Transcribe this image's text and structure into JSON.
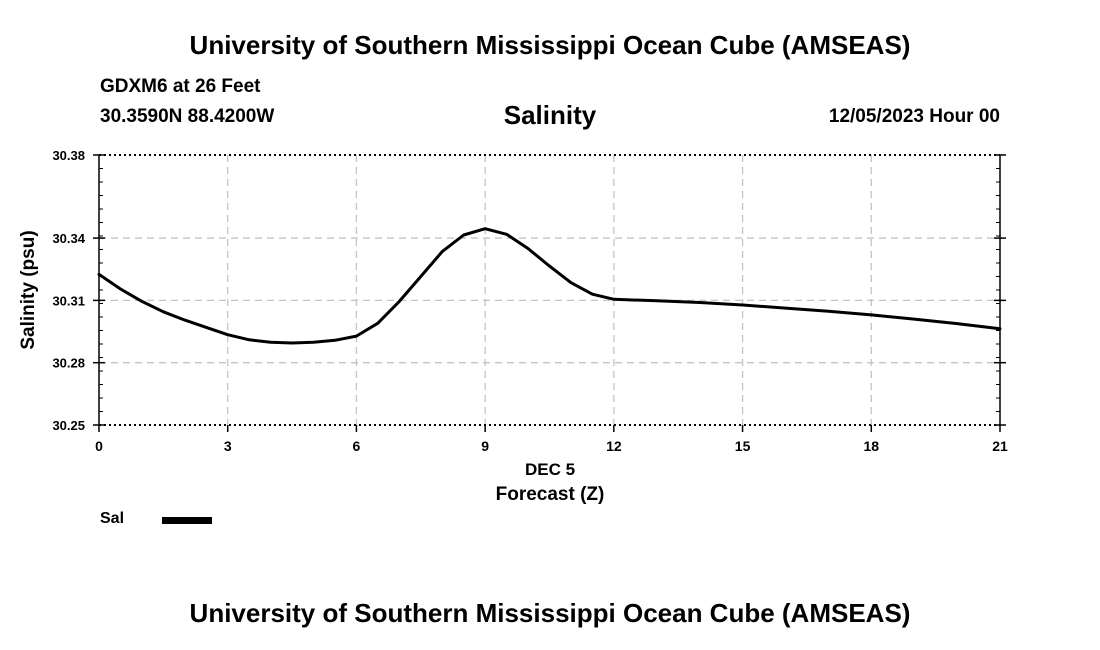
{
  "header": {
    "title": "University of Southern Mississippi Ocean Cube (AMSEAS)",
    "station": "GDXM6 at 26 Feet",
    "coordinates": "30.3590N  88.4200W",
    "datetime": "12/05/2023 Hour 00"
  },
  "footer": {
    "title": "University of Southern Mississippi Ocean Cube (AMSEAS)"
  },
  "chart_data": {
    "type": "line",
    "title": "Salinity",
    "xlabel": "Forecast (Z)",
    "xdate_label": "DEC 5",
    "ylabel": "Salinity (psu)",
    "xlim": [
      0,
      21
    ],
    "ylim": [
      30.25,
      30.38
    ],
    "x_ticks": [
      0,
      3,
      6,
      9,
      12,
      15,
      18,
      21
    ],
    "y_ticks": [
      30.25,
      30.28,
      30.31,
      30.34,
      30.38
    ],
    "y_tick_labels": [
      "30.25",
      "30.28",
      "30.31",
      "30.34",
      "30.38"
    ],
    "grid": true,
    "legend_position": "bottom-left",
    "series": [
      {
        "name": "Sal",
        "color": "#000000",
        "x": [
          0,
          0.5,
          1,
          1.5,
          2,
          2.5,
          3,
          3.5,
          4,
          4.5,
          5,
          5.5,
          6,
          6.5,
          7,
          7.5,
          8,
          8.5,
          9,
          9.5,
          10,
          10.5,
          11,
          11.5,
          12,
          13,
          14,
          15,
          16,
          17,
          18,
          19,
          20,
          21
        ],
        "y": [
          30.3225,
          30.3155,
          30.3095,
          30.3045,
          30.3005,
          30.297,
          30.2935,
          30.291,
          30.2898,
          30.2895,
          30.2898,
          30.2908,
          30.2928,
          30.299,
          30.3095,
          30.3215,
          30.3335,
          30.3415,
          30.3445,
          30.3418,
          30.335,
          30.3265,
          30.3185,
          30.313,
          30.3105,
          30.3098,
          30.309,
          30.3078,
          30.3063,
          30.3048,
          30.303,
          30.301,
          30.2988,
          30.2963
        ]
      }
    ]
  }
}
